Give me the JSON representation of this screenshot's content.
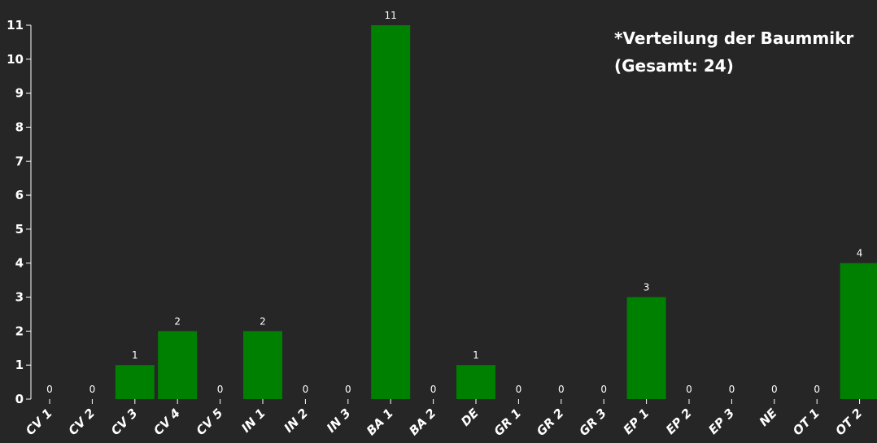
{
  "chart_data": {
    "type": "bar",
    "title_line1": "*Verteilung der Baummikr",
    "title_line2": "(Gesamt: 24)",
    "categories": [
      "CV 1",
      "CV 2",
      "CV 3",
      "CV 4",
      "CV 5",
      "IN 1",
      "IN 2",
      "IN 3",
      "BA 1",
      "BA 2",
      "DE",
      "GR 1",
      "GR 2",
      "GR 3",
      "EP 1",
      "EP 2",
      "EP 3",
      "NE",
      "OT 1",
      "OT 2"
    ],
    "values": [
      0,
      0,
      1,
      2,
      0,
      2,
      0,
      0,
      11,
      0,
      1,
      0,
      0,
      0,
      3,
      0,
      0,
      0,
      0,
      4
    ],
    "yticks": [
      0,
      1,
      2,
      3,
      4,
      5,
      6,
      7,
      8,
      9,
      10,
      11
    ],
    "ylim": [
      0,
      11
    ],
    "xlabel": "",
    "ylabel": "",
    "grid": false,
    "legend": "none",
    "colors": {
      "bar": "#008000",
      "background": "#262626",
      "axis": "#ffffff",
      "text": "#ffffff"
    }
  }
}
